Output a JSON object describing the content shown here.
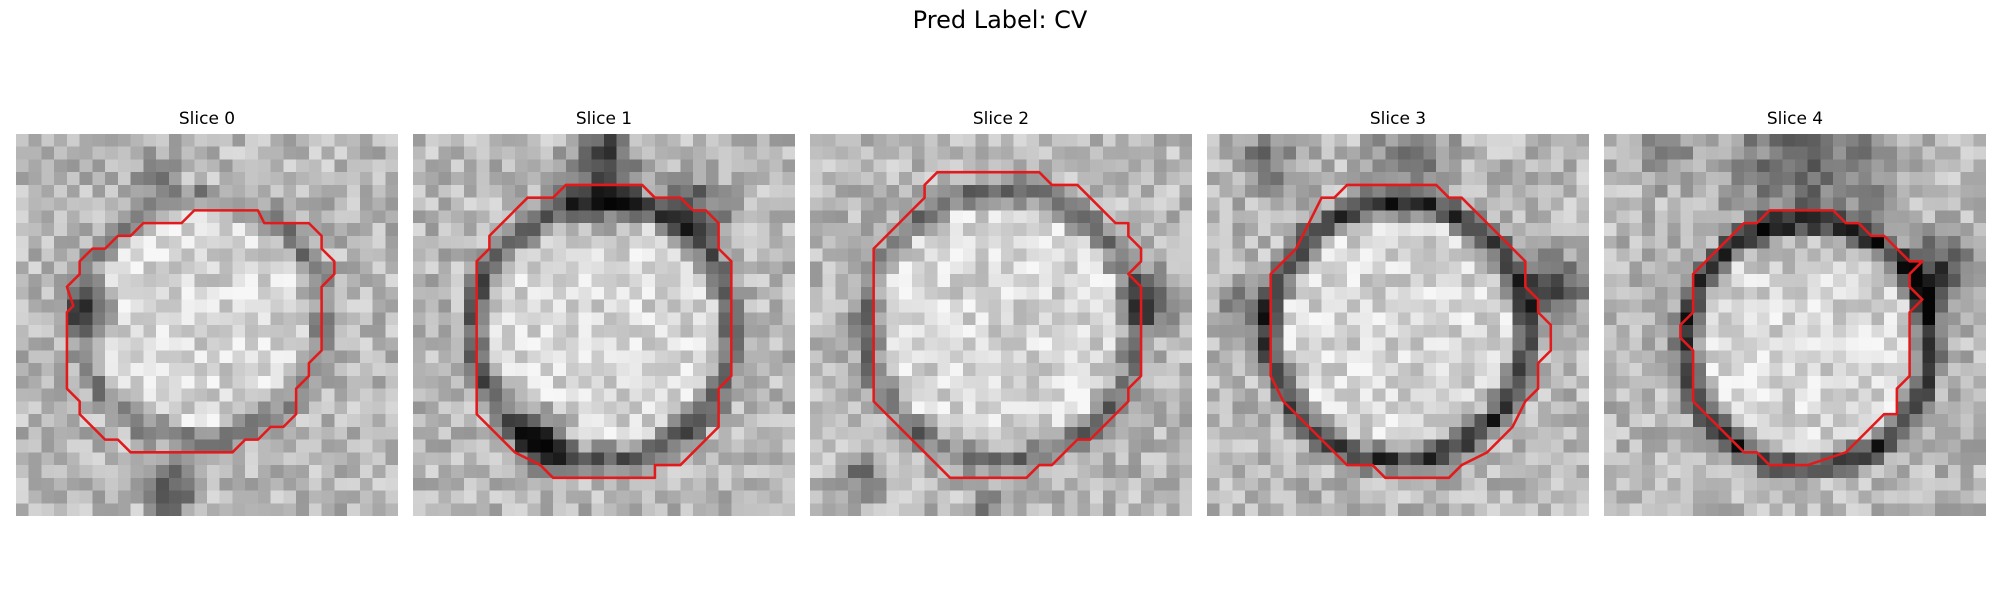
{
  "figure": {
    "title": "Pred Label: CV"
  },
  "slices": [
    {
      "title": "Slice 0"
    },
    {
      "title": "Slice 1"
    },
    {
      "title": "Slice 2"
    },
    {
      "title": "Slice 3"
    },
    {
      "title": "Slice 4"
    }
  ],
  "colors": {
    "contour": "#e31a1c",
    "background": "#ffffff"
  }
}
